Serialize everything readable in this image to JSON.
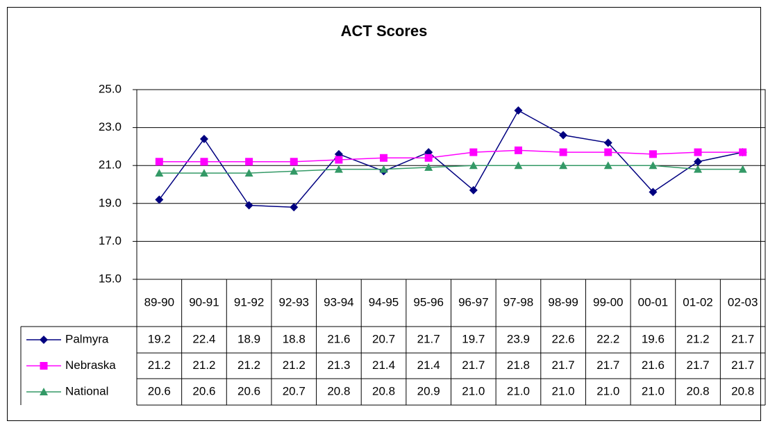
{
  "chart_data": {
    "type": "line",
    "title": "ACT Scores",
    "categories": [
      "89-90",
      "90-91",
      "91-92",
      "92-93",
      "93-94",
      "94-95",
      "95-96",
      "96-97",
      "97-98",
      "98-99",
      "99-00",
      "00-01",
      "01-02",
      "02-03"
    ],
    "series": [
      {
        "name": "Palmyra",
        "color": "#000080",
        "marker": "diamond",
        "values": [
          19.2,
          22.4,
          18.9,
          18.8,
          21.6,
          20.7,
          21.7,
          19.7,
          23.9,
          22.6,
          22.2,
          19.6,
          21.2,
          21.7
        ],
        "value_labels": [
          "19.2",
          "22.4",
          "18.9",
          "18.8",
          "21.6",
          "20.7",
          "21.7",
          "19.7",
          "23.9",
          "22.6",
          "22.2",
          "19.6",
          "21.2",
          "21.7"
        ]
      },
      {
        "name": "Nebraska",
        "color": "#ff00ff",
        "marker": "square",
        "values": [
          21.2,
          21.2,
          21.2,
          21.2,
          21.3,
          21.4,
          21.4,
          21.7,
          21.8,
          21.7,
          21.7,
          21.6,
          21.7,
          21.7
        ],
        "value_labels": [
          "21.2",
          "21.2",
          "21.2",
          "21.2",
          "21.3",
          "21.4",
          "21.4",
          "21.7",
          "21.8",
          "21.7",
          "21.7",
          "21.6",
          "21.7",
          "21.7"
        ]
      },
      {
        "name": "National",
        "color": "#339966",
        "marker": "triangle",
        "values": [
          20.6,
          20.6,
          20.6,
          20.7,
          20.8,
          20.8,
          20.9,
          21,
          21,
          21,
          21,
          21,
          20.8,
          20.8
        ],
        "value_labels": [
          "20.6",
          "20.6",
          "20.6",
          "20.7",
          "20.8",
          "20.8",
          "20.9",
          "21.0",
          "21.0",
          "21.0",
          "21.0",
          "21.0",
          "20.8",
          "20.8"
        ]
      }
    ],
    "ylim": [
      15,
      25
    ],
    "yticks": [
      {
        "value": 15,
        "label": "15.0"
      },
      {
        "value": 17,
        "label": "17.0"
      },
      {
        "value": 19,
        "label": "19.0"
      },
      {
        "value": 21,
        "label": "21.0"
      },
      {
        "value": 23,
        "label": "23.0"
      },
      {
        "value": 25,
        "label": "25.0"
      }
    ],
    "grid": true
  }
}
